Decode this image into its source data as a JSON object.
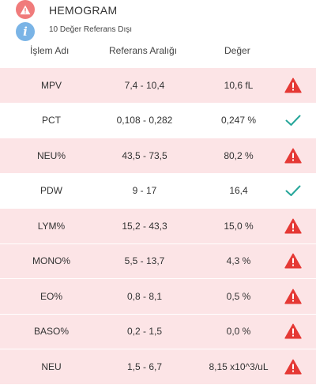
{
  "header": {
    "title": "HEMOGRAM",
    "subtitle": "10 Değer Referans Dışı",
    "alert_icon": "warning-icon",
    "info_icon": "info-icon"
  },
  "columns": {
    "name": "İşlem Adı",
    "range": "Referans Aralığı",
    "value": "Değer"
  },
  "colors": {
    "out_of_range_row": "#fce4e6",
    "warning": "#e53935",
    "ok": "#26a69a",
    "info": "#7ab4e6",
    "alert_badge": "#f07b7b"
  },
  "rows": [
    {
      "name": "MPV",
      "range": "7,4 - 10,4",
      "value": "10,6 fL",
      "status": "warning-icon"
    },
    {
      "name": "PCT",
      "range": "0,108 - 0,282",
      "value": "0,247 %",
      "status": "check-icon"
    },
    {
      "name": "NEU%",
      "range": "43,5 - 73,5",
      "value": "80,2 %",
      "status": "warning-icon"
    },
    {
      "name": "PDW",
      "range": "9 - 17",
      "value": "16,4",
      "status": "check-icon"
    },
    {
      "name": "LYM%",
      "range": "15,2 - 43,3",
      "value": "15,0 %",
      "status": "warning-icon"
    },
    {
      "name": "MONO%",
      "range": "5,5 - 13,7",
      "value": "4,3 %",
      "status": "warning-icon"
    },
    {
      "name": "EO%",
      "range": "0,8 - 8,1",
      "value": "0,5 %",
      "status": "warning-icon"
    },
    {
      "name": "BASO%",
      "range": "0,2 - 1,5",
      "value": "0,0 %",
      "status": "warning-icon"
    },
    {
      "name": "NEU",
      "range": "1,5 - 6,7",
      "value": "8,15 x10^3/uL",
      "status": "warning-icon"
    }
  ]
}
